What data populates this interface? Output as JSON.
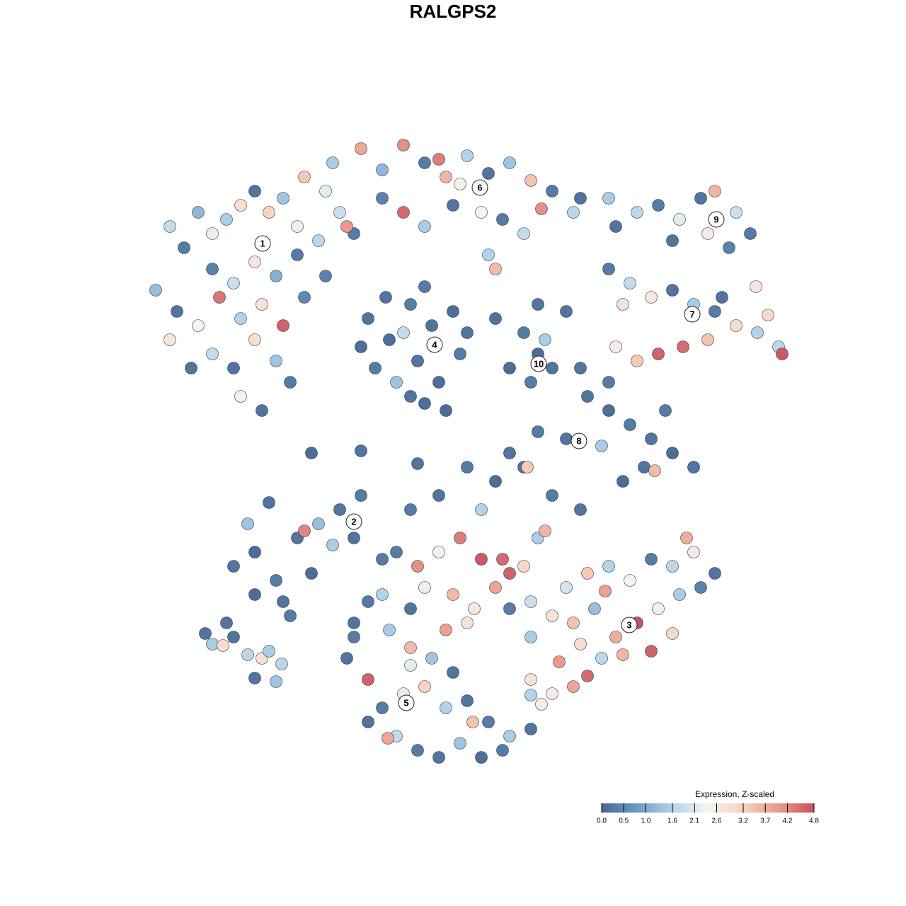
{
  "chart_data": {
    "type": "scatter",
    "title": "RALGPS2",
    "xlim": [
      0,
      128
    ],
    "ylim": [
      0,
      128
    ],
    "x": [
      24,
      26,
      28,
      30,
      32,
      34,
      36,
      38,
      40,
      42,
      30,
      33,
      36,
      39,
      42,
      45,
      22,
      25,
      28,
      31,
      34,
      37,
      40,
      43,
      30,
      33,
      36,
      39,
      41,
      34,
      37,
      46,
      48,
      50,
      46,
      24,
      27,
      43,
      47,
      49,
      51,
      54,
      57,
      60,
      63,
      66,
      69,
      72,
      75,
      78,
      81,
      54,
      57,
      60,
      64,
      68,
      71,
      74,
      76.5,
      62,
      65,
      82,
      70,
      69,
      52,
      55,
      58,
      61,
      64,
      53,
      56,
      59,
      62,
      65,
      54.5,
      60,
      57,
      51,
      66,
      60,
      58,
      63,
      70,
      74,
      76,
      78,
      75,
      77,
      80,
      72,
      76,
      87,
      90,
      93,
      96,
      99,
      101,
      104,
      106,
      95,
      100,
      103,
      106.8,
      86,
      86,
      89,
      92,
      95,
      98,
      101,
      104,
      107,
      110,
      110.5,
      93,
      96.5,
      90,
      87,
      100,
      102,
      108.5,
      88,
      83,
      86,
      89,
      92,
      95,
      98,
      94,
      91,
      88,
      85,
      92.5,
      80,
      76,
      82,
      86,
      33,
      36,
      39,
      42,
      45,
      48,
      51,
      36,
      40,
      44,
      47,
      50,
      43,
      54,
      35,
      38,
      41,
      62,
      66,
      70,
      74,
      78,
      82,
      68,
      74.5,
      72,
      58,
      76,
      59,
      44,
      51,
      56,
      59,
      62,
      65,
      68,
      71,
      74,
      77,
      80,
      83,
      86,
      89,
      92,
      95,
      98,
      101,
      64,
      67,
      70,
      72,
      75,
      78,
      81,
      84,
      87,
      90,
      93,
      96,
      99,
      82,
      85,
      88,
      92,
      79,
      83,
      78,
      81,
      95,
      97,
      60,
      63,
      72,
      75,
      66,
      58,
      54,
      76.5,
      75,
      85.5,
      49,
      52,
      54,
      57,
      60,
      63,
      66,
      69,
      72,
      75,
      56,
      59,
      62,
      65,
      68,
      71,
      54.8,
      66.8,
      50,
      52,
      58,
      61,
      64,
      50,
      52,
      55,
      58,
      75,
      30,
      31.5,
      33,
      35,
      37,
      38,
      36,
      39,
      39.8,
      29,
      32
    ],
    "y": [
      96,
      93,
      98,
      95,
      97,
      99,
      101,
      98,
      100,
      96,
      90,
      88,
      91,
      89,
      92,
      94,
      87,
      84,
      82,
      86,
      83,
      85,
      82,
      86,
      78,
      76,
      80,
      77,
      74,
      72,
      70,
      89,
      98,
      95,
      101,
      80,
      76,
      103,
      105,
      96,
      107,
      104,
      107.5,
      105,
      103,
      106,
      103.5,
      105,
      102.5,
      101,
      98,
      100,
      98,
      96,
      99,
      98,
      97,
      95,
      98.5,
      105.5,
      102,
      100,
      90,
      92,
      83,
      80,
      85,
      82,
      84,
      76,
      74,
      77,
      74,
      78,
      86,
      71,
      81,
      79,
      81,
      87.5,
      72,
      70,
      83,
      81,
      78,
      76,
      74,
      80,
      84,
      76,
      85,
      96,
      98,
      99,
      97,
      100,
      101,
      98,
      95,
      94,
      95,
      93,
      87.5,
      100,
      90,
      88,
      86,
      87,
      85,
      84,
      82,
      81,
      79,
      78,
      78,
      79,
      77,
      79,
      80,
      86,
      83.5,
      85,
      72,
      70,
      68,
      66,
      64,
      62,
      70,
      62,
      60,
      65,
      61.5,
      66,
      67,
      76,
      74,
      48,
      50,
      46,
      52,
      54,
      56,
      58,
      44,
      43,
      47,
      51,
      52,
      53,
      49,
      54,
      57,
      41,
      58,
      62,
      60,
      62,
      58,
      56,
      56,
      62,
      64,
      56,
      52,
      62.5,
      64,
      64.3,
      50,
      48,
      50,
      52,
      49,
      49,
      48,
      53,
      45,
      47,
      48,
      46,
      49,
      48,
      50,
      47,
      44,
      42,
      45,
      47,
      43,
      41,
      40,
      42,
      38,
      40,
      42,
      44,
      45,
      37,
      35,
      35.5,
      36,
      34.5,
      32.5,
      30,
      31,
      38.5,
      52,
      45,
      39,
      42,
      38,
      40,
      42,
      44,
      28.5,
      32,
      44.5,
      35,
      32,
      28,
      30,
      31,
      28,
      29,
      26,
      24,
      25,
      24,
      22,
      21,
      23,
      21,
      22,
      23.7,
      26,
      38,
      26,
      34,
      35,
      33,
      40,
      43,
      39,
      36.5,
      29.8,
      37,
      36.8,
      38,
      35.5,
      35,
      36,
      32.2,
      31.7,
      34.2,
      38.5,
      40
    ],
    "values": [
      1.8,
      0.3,
      1.2,
      2.6,
      1.5,
      2.9,
      0.2,
      3.1,
      1.4,
      2.3,
      0.4,
      1.9,
      2.7,
      1.1,
      0.3,
      1.7,
      1.3,
      0.2,
      2.4,
      4.4,
      1.6,
      2.8,
      4.6,
      0.5,
      1.8,
      0.2,
      2.9,
      1.4,
      0.3,
      2.5,
      0.2,
      0.4,
      1.9,
      0.3,
      2.2,
      2.7,
      0.2,
      3.3,
      1.5,
      4.0,
      3.8,
      1.2,
      4.1,
      0.3,
      3.6,
      1.6,
      0.2,
      1.4,
      3.4,
      0.3,
      1.7,
      0.4,
      4.5,
      1.5,
      0.2,
      2.4,
      0.3,
      1.8,
      4.1,
      4.3,
      2.5,
      0.2,
      3.5,
      1.6,
      0.2,
      0.1,
      0.3,
      0.2,
      0.1,
      0.3,
      1.4,
      0.2,
      0.1,
      0.3,
      0.2,
      0.1,
      1.8,
      0.1,
      0.2,
      0.3,
      0.2,
      0.1,
      0.2,
      0.3,
      0.1,
      0.2,
      0.3,
      1.5,
      0.2,
      0.1,
      0.2,
      0.2,
      1.7,
      0.3,
      2.2,
      0.2,
      3.6,
      1.9,
      0.3,
      0.2,
      2.6,
      0.4,
      2.7,
      1.5,
      0.3,
      1.8,
      2.7,
      0.2,
      1.5,
      0.3,
      2.9,
      1.6,
      1.7,
      4.7,
      4.6,
      4.5,
      3.3,
      2.6,
      3.4,
      0.2,
      3.0,
      2.8,
      0.2,
      0.1,
      0.3,
      0.2,
      0.1,
      0.2,
      0.3,
      0.2,
      0.1,
      1.5,
      3.5,
      0.2,
      0.3,
      0.2,
      0.3,
      0.2,
      0.1,
      0.3,
      0.2,
      1.3,
      0.2,
      0.3,
      0.1,
      0.2,
      0.1,
      1.5,
      0.2,
      4.2,
      0.3,
      1.4,
      0.2,
      0.3,
      0.2,
      0.3,
      0.1,
      0.2,
      0.3,
      0.2,
      1.6,
      3.3,
      0.2,
      0.3,
      1.5,
      0.2,
      0.1,
      0.2,
      0.3,
      4.1,
      2.5,
      4.3,
      4.7,
      4.5,
      3.0,
      3.6,
      2.0,
      3.3,
      1.6,
      2.4,
      0.3,
      1.7,
      2.6,
      0.2,
      3.5,
      2.7,
      3.8,
      4.6,
      1.9,
      2.8,
      3.4,
      1.3,
      3.7,
      4.8,
      2.3,
      1.5,
      0.4,
      2.9,
      1.7,
      3.6,
      4.6,
      4.0,
      4.5,
      2.6,
      3.8,
      3.0,
      3.7,
      2.3,
      3.9,
      0.3,
      1.5,
      2.8,
      0.2,
      1.6,
      2.6,
      2.8,
      3.9,
      0.2,
      4.6,
      0.3,
      2.6,
      3.1,
      1.6,
      0.2,
      0.3,
      1.5,
      0.2,
      1.8,
      0.3,
      0.2,
      1.4,
      0.1,
      0.3,
      3.8,
      3.4,
      0.3,
      0.2,
      2.2,
      1.4,
      0.2,
      0.2,
      0.3,
      1.5,
      3.5,
      1.6,
      1.5,
      2.9,
      0.2,
      1.7,
      2.8,
      1.5,
      0.2,
      1.4,
      1.7,
      0.2,
      0.2
    ],
    "cluster_labels": [
      {
        "text": "1",
        "x": 37.1,
        "y": 93.6
      },
      {
        "text": "2",
        "x": 50.0,
        "y": 54.3
      },
      {
        "text": "3",
        "x": 88.9,
        "y": 39.7
      },
      {
        "text": "4",
        "x": 61.4,
        "y": 79.3
      },
      {
        "text": "5",
        "x": 57.4,
        "y": 28.7
      },
      {
        "text": "6",
        "x": 67.8,
        "y": 101.5
      },
      {
        "text": "7",
        "x": 97.8,
        "y": 83.6
      },
      {
        "text": "8",
        "x": 81.8,
        "y": 65.7
      },
      {
        "text": "9",
        "x": 101.2,
        "y": 97.0
      },
      {
        "text": "10",
        "x": 76.1,
        "y": 76.6
      }
    ],
    "colorbar": {
      "title": "Expression, Z-scaled",
      "clim": [
        0,
        4.8
      ],
      "ticks": [
        {
          "value": 0,
          "label": "0.0"
        },
        0.5,
        {
          "value": 1,
          "label": "1.0"
        },
        1.6,
        2.1,
        2.6,
        3.2,
        3.7,
        4.2,
        4.8
      ],
      "colors": [
        "#4a6791",
        "#6b9bc7",
        "#b3d3e8",
        "#f4f4f2",
        "#f8d0bb",
        "#e9998a",
        "#c9505f"
      ]
    }
  }
}
